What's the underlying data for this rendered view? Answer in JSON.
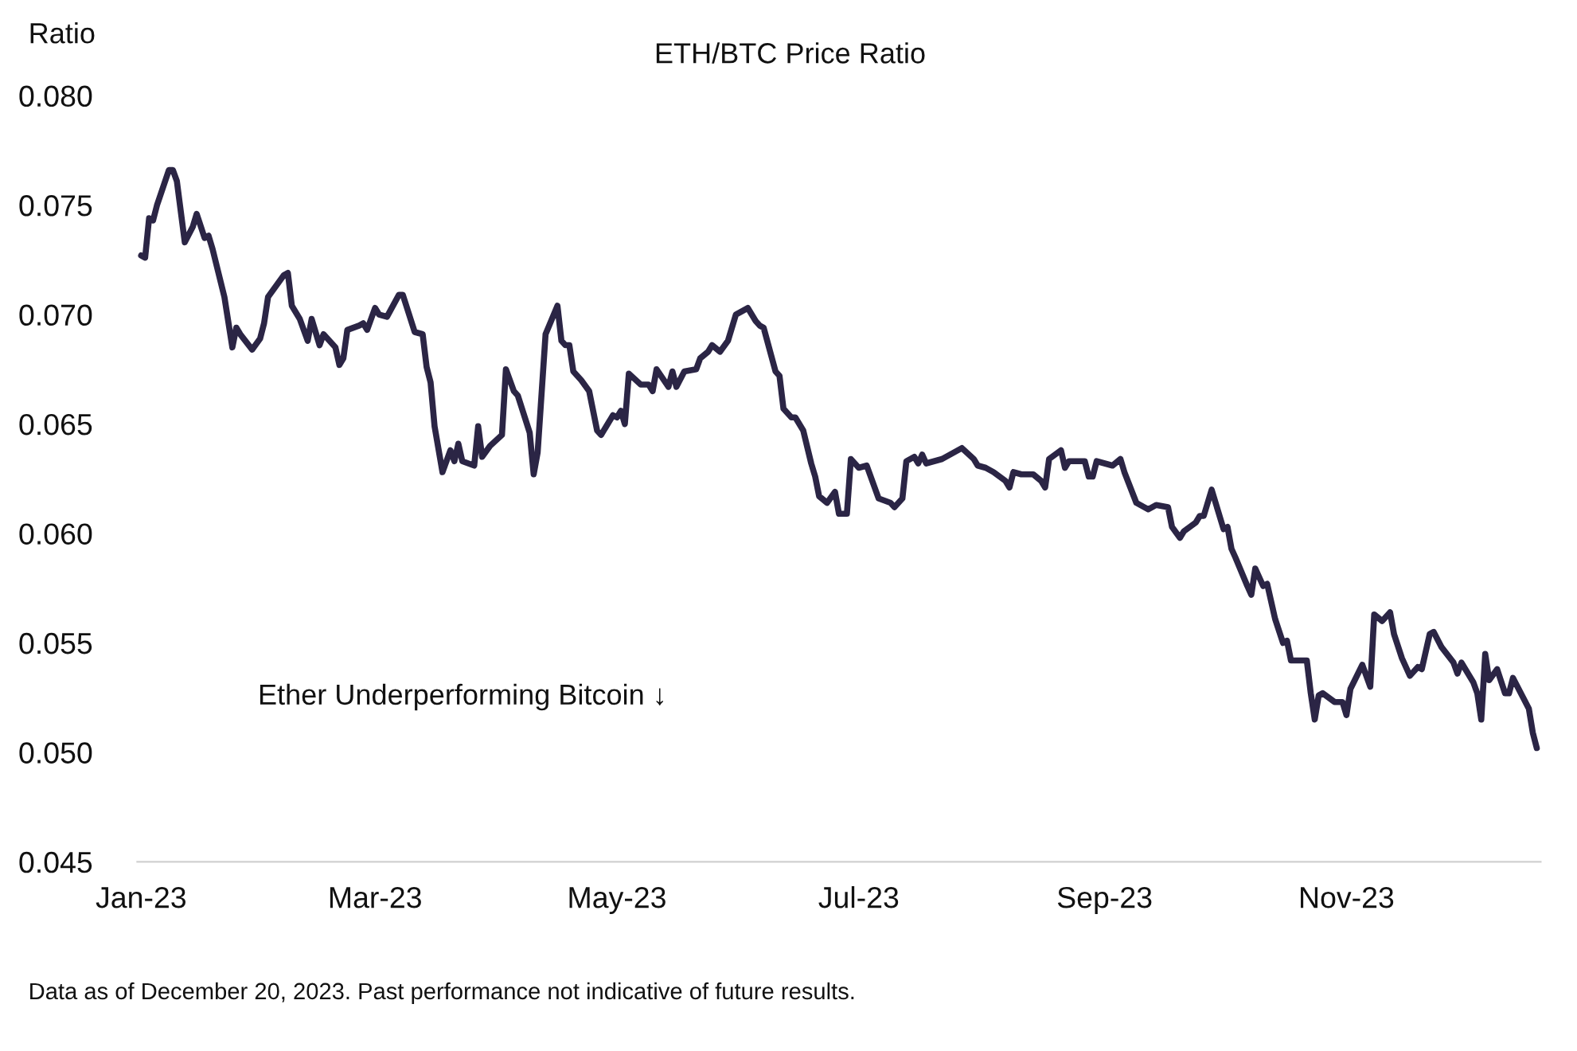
{
  "chart_data": {
    "type": "line",
    "title": "ETH/BTC Price Ratio",
    "ylabel": "Ratio",
    "annotations": [
      "Ether Underperforming Bitcoin ↓",
      "Data as of December 20, 2023. Past performance not indicative of future results."
    ],
    "xlim": [
      "2022-12-31",
      "2023-12-20"
    ],
    "ylim": [
      0.045,
      0.08
    ],
    "xticks": [
      {
        "value": "2023-01-01",
        "label": "Jan-23"
      },
      {
        "value": "2023-03-01",
        "label": "Mar-23"
      },
      {
        "value": "2023-05-01",
        "label": "May-23"
      },
      {
        "value": "2023-07-01",
        "label": "Jul-23"
      },
      {
        "value": "2023-09-01",
        "label": "Sep-23"
      },
      {
        "value": "2023-11-01",
        "label": "Nov-23"
      }
    ],
    "yticks": [
      {
        "value": 0.045,
        "label": "0.045"
      },
      {
        "value": 0.05,
        "label": "0.050"
      },
      {
        "value": 0.055,
        "label": "0.055"
      },
      {
        "value": 0.06,
        "label": "0.060"
      },
      {
        "value": 0.065,
        "label": "0.065"
      },
      {
        "value": 0.07,
        "label": "0.070"
      },
      {
        "value": 0.075,
        "label": "0.075"
      },
      {
        "value": 0.08,
        "label": "0.080"
      }
    ],
    "grid": false,
    "line_style": "solid",
    "x": [
      "2023-01-01",
      "2023-01-02",
      "2023-01-03",
      "2023-01-04",
      "2023-01-05",
      "2023-01-08",
      "2023-01-09",
      "2023-01-10",
      "2023-01-12",
      "2023-01-14",
      "2023-01-15",
      "2023-01-17",
      "2023-01-18",
      "2023-01-19",
      "2023-01-22",
      "2023-01-24",
      "2023-01-25",
      "2023-01-26",
      "2023-01-29",
      "2023-01-31",
      "2023-02-01",
      "2023-02-02",
      "2023-02-04",
      "2023-02-06",
      "2023-02-07",
      "2023-02-08",
      "2023-02-10",
      "2023-02-12",
      "2023-02-13",
      "2023-02-15",
      "2023-02-16",
      "2023-02-19",
      "2023-02-20",
      "2023-02-21",
      "2023-02-22",
      "2023-02-25",
      "2023-02-26",
      "2023-02-27",
      "2023-03-01",
      "2023-03-02",
      "2023-03-04",
      "2023-03-07",
      "2023-03-08",
      "2023-03-11",
      "2023-03-13",
      "2023-03-14",
      "2023-03-15",
      "2023-03-16",
      "2023-03-18",
      "2023-03-20",
      "2023-03-21",
      "2023-03-22",
      "2023-03-23",
      "2023-03-26",
      "2023-03-27",
      "2023-03-28",
      "2023-03-30",
      "2023-04-02",
      "2023-04-03",
      "2023-04-05",
      "2023-04-06",
      "2023-04-09",
      "2023-04-10",
      "2023-04-11",
      "2023-04-13",
      "2023-04-16",
      "2023-04-17",
      "2023-04-18",
      "2023-04-19",
      "2023-04-20",
      "2023-04-22",
      "2023-04-24",
      "2023-04-26",
      "2023-04-27",
      "2023-04-29",
      "2023-04-30",
      "2023-05-01",
      "2023-05-02",
      "2023-05-03",
      "2023-05-04",
      "2023-05-07",
      "2023-05-09",
      "2023-05-10",
      "2023-05-11",
      "2023-05-14",
      "2023-05-15",
      "2023-05-16",
      "2023-05-18",
      "2023-05-21",
      "2023-05-22",
      "2023-05-24",
      "2023-05-25",
      "2023-05-27",
      "2023-05-29",
      "2023-05-31",
      "2023-06-03",
      "2023-06-05",
      "2023-06-06",
      "2023-06-07",
      "2023-06-10",
      "2023-06-11",
      "2023-06-12",
      "2023-06-14",
      "2023-06-15",
      "2023-06-17",
      "2023-06-19",
      "2023-06-20",
      "2023-06-21",
      "2023-06-23",
      "2023-06-25",
      "2023-06-26",
      "2023-06-28",
      "2023-06-29",
      "2023-07-01",
      "2023-07-03",
      "2023-07-06",
      "2023-07-09",
      "2023-07-10",
      "2023-07-12",
      "2023-07-13",
      "2023-07-15",
      "2023-07-16",
      "2023-07-17",
      "2023-07-18",
      "2023-07-22",
      "2023-07-23",
      "2023-07-25",
      "2023-07-27",
      "2023-07-30",
      "2023-07-31",
      "2023-08-02",
      "2023-08-04",
      "2023-08-07",
      "2023-08-08",
      "2023-08-09",
      "2023-08-11",
      "2023-08-14",
      "2023-08-16",
      "2023-08-17",
      "2023-08-18",
      "2023-08-21",
      "2023-08-22",
      "2023-08-23",
      "2023-08-27",
      "2023-08-28",
      "2023-08-29",
      "2023-08-30",
      "2023-09-03",
      "2023-09-05",
      "2023-09-06",
      "2023-09-09",
      "2023-09-12",
      "2023-09-14",
      "2023-09-17",
      "2023-09-18",
      "2023-09-20",
      "2023-09-21",
      "2023-09-24",
      "2023-09-25",
      "2023-09-26",
      "2023-09-28",
      "2023-10-01",
      "2023-10-02",
      "2023-10-03",
      "2023-10-04",
      "2023-10-07",
      "2023-10-08",
      "2023-10-09",
      "2023-10-11",
      "2023-10-12",
      "2023-10-14",
      "2023-10-16",
      "2023-10-17",
      "2023-10-18",
      "2023-10-22",
      "2023-10-23",
      "2023-10-24",
      "2023-10-25",
      "2023-10-26",
      "2023-10-29",
      "2023-10-31",
      "2023-11-01",
      "2023-11-02",
      "2023-11-05",
      "2023-11-07",
      "2023-11-08",
      "2023-11-10",
      "2023-11-12",
      "2023-11-13",
      "2023-11-15",
      "2023-11-17",
      "2023-11-19",
      "2023-11-20",
      "2023-11-22",
      "2023-11-23",
      "2023-11-25",
      "2023-11-28",
      "2023-11-29",
      "2023-11-30",
      "2023-12-03",
      "2023-12-04",
      "2023-12-05",
      "2023-12-06",
      "2023-12-07",
      "2023-12-09",
      "2023-12-11",
      "2023-12-12",
      "2023-12-13",
      "2023-12-17",
      "2023-12-18",
      "2023-12-19"
    ],
    "series": [
      {
        "color": "#2b2545",
        "values": [
          0.0727,
          0.0726,
          0.0744,
          0.0743,
          0.075,
          0.0766,
          0.0766,
          0.0761,
          0.0733,
          0.074,
          0.0746,
          0.0735,
          0.0736,
          0.073,
          0.0708,
          0.0685,
          0.0694,
          0.0691,
          0.0684,
          0.0689,
          0.0696,
          0.0708,
          0.0713,
          0.0718,
          0.0719,
          0.0704,
          0.0698,
          0.0688,
          0.0698,
          0.0686,
          0.0691,
          0.0685,
          0.0677,
          0.068,
          0.0693,
          0.0695,
          0.0696,
          0.0693,
          0.0703,
          0.07,
          0.0699,
          0.0709,
          0.0709,
          0.0692,
          0.0691,
          0.0676,
          0.0669,
          0.0649,
          0.0628,
          0.0638,
          0.0633,
          0.0641,
          0.0633,
          0.0631,
          0.0649,
          0.0635,
          0.064,
          0.0645,
          0.0675,
          0.0665,
          0.0663,
          0.0646,
          0.0627,
          0.0637,
          0.0691,
          0.0704,
          0.0688,
          0.0686,
          0.0686,
          0.0674,
          0.067,
          0.0665,
          0.0647,
          0.0645,
          0.0651,
          0.0654,
          0.0653,
          0.0656,
          0.065,
          0.0673,
          0.0668,
          0.0668,
          0.0665,
          0.0675,
          0.0667,
          0.0674,
          0.0667,
          0.0674,
          0.0675,
          0.068,
          0.0683,
          0.0686,
          0.0683,
          0.0688,
          0.07,
          0.0703,
          0.0697,
          0.0695,
          0.0694,
          0.0674,
          0.0672,
          0.0657,
          0.0653,
          0.0653,
          0.0647,
          0.0632,
          0.0626,
          0.0617,
          0.0614,
          0.0619,
          0.0609,
          0.0609,
          0.0634,
          0.063,
          0.0631,
          0.0616,
          0.0614,
          0.0612,
          0.0616,
          0.0633,
          0.0635,
          0.0632,
          0.0636,
          0.0632,
          0.0634,
          0.0635,
          0.0637,
          0.0639,
          0.0634,
          0.0631,
          0.063,
          0.0628,
          0.0624,
          0.0621,
          0.0628,
          0.0627,
          0.0627,
          0.0624,
          0.0621,
          0.0634,
          0.0638,
          0.063,
          0.0633,
          0.0633,
          0.0626,
          0.0626,
          0.0633,
          0.0631,
          0.0634,
          0.0628,
          0.0614,
          0.0611,
          0.0613,
          0.0612,
          0.0603,
          0.0598,
          0.0601,
          0.0605,
          0.0608,
          0.0608,
          0.062,
          0.0602,
          0.0603,
          0.0593,
          0.0589,
          0.0576,
          0.0572,
          0.0584,
          0.0576,
          0.0577,
          0.0561,
          0.055,
          0.0551,
          0.0542,
          0.0542,
          0.0527,
          0.0515,
          0.0526,
          0.0527,
          0.0523,
          0.0523,
          0.0517,
          0.0529,
          0.054,
          0.053,
          0.0563,
          0.056,
          0.0564,
          0.0554,
          0.0543,
          0.0535,
          0.0539,
          0.0538,
          0.0554,
          0.0555,
          0.0548,
          0.0541,
          0.0536,
          0.0541,
          0.0532,
          0.0527,
          0.0515,
          0.0545,
          0.0533,
          0.0538,
          0.0527,
          0.0527,
          0.0534,
          0.052,
          0.0509,
          0.0502
        ]
      }
    ]
  }
}
